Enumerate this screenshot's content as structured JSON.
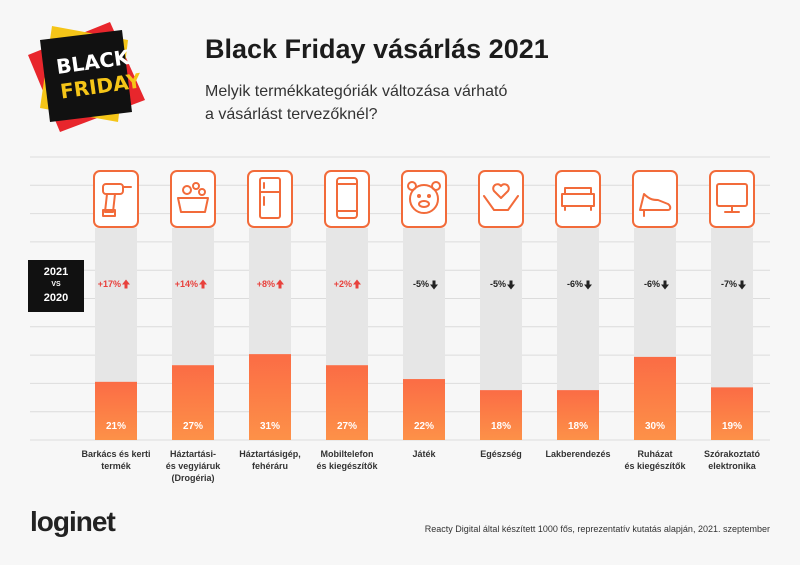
{
  "chart_data": {
    "type": "bar",
    "title": "Black Friday vásárlás 2021",
    "subtitle": "Melyik termékkategóriák változása várható\na vásárlást tervezőknél?",
    "badge": [
      "BLACK",
      "FRIDAY"
    ],
    "comparison": [
      "2021",
      "VS",
      "2020"
    ],
    "categories": [
      "Barkács és kerti\ntermék",
      "Háztartási-\nés vegyiáruk\n(Drogéria)",
      "Háztartásigép,\nfehéráru",
      "Mobiltelefon\nés kiegészítők",
      "Játék",
      "Egészség",
      "Lakberendezés",
      "Ruházat\nés kiegészítők",
      "Szórakoztató\nelektronika"
    ],
    "values": [
      21,
      27,
      31,
      27,
      22,
      18,
      18,
      30,
      19
    ],
    "value_labels": [
      "21%",
      "27%",
      "31%",
      "27%",
      "22%",
      "18%",
      "18%",
      "30%",
      "19%"
    ],
    "color": "#fb6c45",
    "change": {
      "values": [
        17,
        14,
        8,
        2,
        -5,
        -5,
        -6,
        -6,
        -7
      ],
      "value_labels": [
        "+17%",
        "+14%",
        "+8%",
        "+2%",
        "-5%",
        "-5%",
        "-6%",
        "-6%",
        "-7%"
      ],
      "up_color": "#e8413c",
      "down_color": "#222222"
    },
    "source": "Reacty Digital által készített 1000 fős, reprezentatív kutatás alapján, 2021. szeptember"
  },
  "logo": "loginet"
}
